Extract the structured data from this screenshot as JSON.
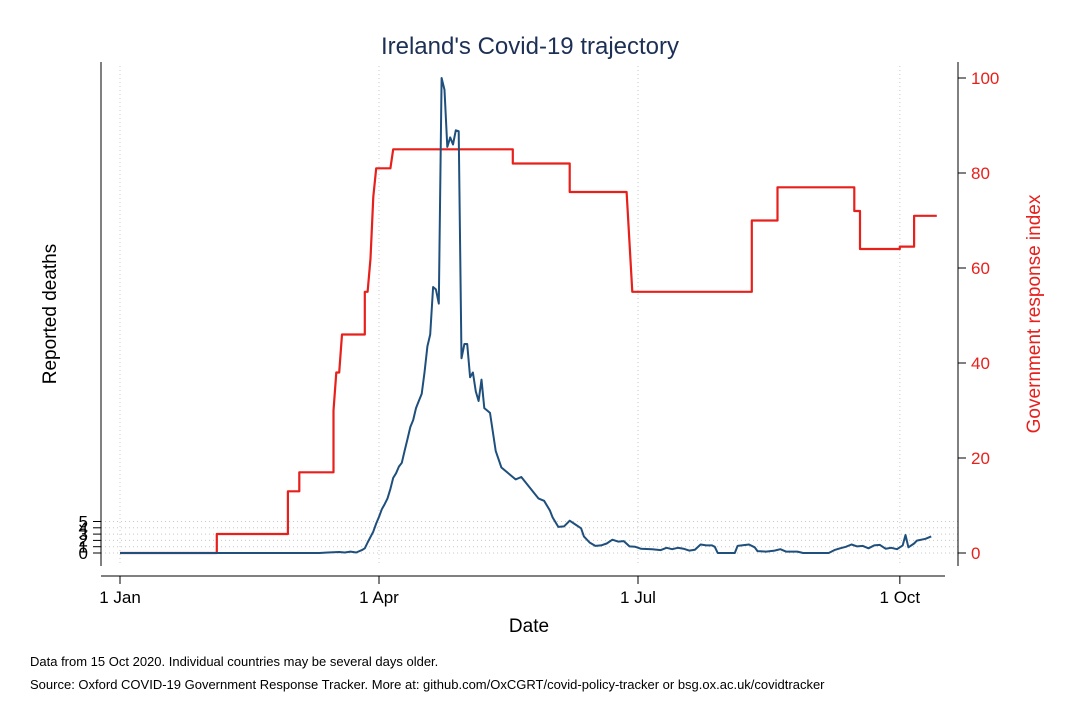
{
  "chart_data": {
    "type": "line",
    "title": "Ireland's Covid-19 trajectory",
    "xlabel": "Date",
    "ylabel_left": "Reported deaths",
    "ylabel_right": "Government response index",
    "x_ticks": [
      {
        "date": "2020-01-01",
        "label": "1 Jan"
      },
      {
        "date": "2020-04-01",
        "label": "1 Apr"
      },
      {
        "date": "2020-07-01",
        "label": "1 Jul"
      },
      {
        "date": "2020-10-01",
        "label": "1 Oct"
      }
    ],
    "xlim": [
      "2019-12-27",
      "2020-10-20"
    ],
    "y_left_ticks": [
      "0",
      "1",
      "2",
      "3",
      "4",
      "5"
    ],
    "y_left_ticks_overlapping": true,
    "y_right_ticks": [
      0,
      20,
      40,
      60,
      80,
      100
    ],
    "ylim_right": [
      -5,
      103
    ],
    "grid": "dotted, vertical at x ticks and horizontal at left ticks",
    "colors": {
      "deaths": "#1f4f7c",
      "response": "#e8201c",
      "title": "#1c2f54"
    },
    "series": [
      {
        "axis": "right",
        "color": "#e8201c",
        "points": [
          [
            "2020-01-01",
            0
          ],
          [
            "2020-02-04",
            0
          ],
          [
            "2020-02-04",
            4
          ],
          [
            "2020-02-29",
            4
          ],
          [
            "2020-02-29",
            13
          ],
          [
            "2020-03-04",
            13
          ],
          [
            "2020-03-04",
            17
          ],
          [
            "2020-03-16",
            17
          ],
          [
            "2020-03-16",
            30
          ],
          [
            "2020-03-17",
            38
          ],
          [
            "2020-03-18",
            38
          ],
          [
            "2020-03-19",
            46
          ],
          [
            "2020-03-27",
            46
          ],
          [
            "2020-03-27",
            55
          ],
          [
            "2020-03-28",
            55
          ],
          [
            "2020-03-29",
            62
          ],
          [
            "2020-03-30",
            75
          ],
          [
            "2020-03-31",
            81
          ],
          [
            "2020-04-05",
            81
          ],
          [
            "2020-04-06",
            85
          ],
          [
            "2020-05-18",
            85
          ],
          [
            "2020-05-18",
            82
          ],
          [
            "2020-06-07",
            82
          ],
          [
            "2020-06-07",
            76
          ],
          [
            "2020-06-27",
            76
          ],
          [
            "2020-06-29",
            55
          ],
          [
            "2020-08-10",
            55
          ],
          [
            "2020-08-10",
            70
          ],
          [
            "2020-08-19",
            70
          ],
          [
            "2020-08-19",
            77
          ],
          [
            "2020-09-15",
            77
          ],
          [
            "2020-09-15",
            72
          ],
          [
            "2020-09-17",
            72
          ],
          [
            "2020-09-17",
            64
          ],
          [
            "2020-10-01",
            64
          ],
          [
            "2020-10-01",
            64.5
          ],
          [
            "2020-10-06",
            64.5
          ],
          [
            "2020-10-06",
            71
          ],
          [
            "2020-10-14",
            71
          ]
        ]
      },
      {
        "axis": "deaths",
        "color": "#1f4f7c",
        "points": [
          [
            "2020-01-01",
            0
          ],
          [
            "2020-03-11",
            0
          ],
          [
            "2020-03-14",
            0.1
          ],
          [
            "2020-03-18",
            0.2
          ],
          [
            "2020-03-20",
            0.1
          ],
          [
            "2020-03-22",
            0.3
          ],
          [
            "2020-03-24",
            0.1
          ],
          [
            "2020-03-26",
            0.6
          ],
          [
            "2020-03-27",
            1.0
          ],
          [
            "2020-03-28",
            2.2
          ],
          [
            "2020-03-29",
            3.4
          ],
          [
            "2020-03-30",
            4.5
          ],
          [
            "2020-03-31",
            6.2
          ],
          [
            "2020-04-01",
            7.6
          ],
          [
            "2020-04-02",
            9.2
          ],
          [
            "2020-04-03",
            10.3
          ],
          [
            "2020-04-04",
            11.5
          ],
          [
            "2020-04-05",
            13.5
          ],
          [
            "2020-04-06",
            15.8
          ],
          [
            "2020-04-07",
            16.8
          ],
          [
            "2020-04-08",
            18.2
          ],
          [
            "2020-04-09",
            19.0
          ],
          [
            "2020-04-10",
            21.5
          ],
          [
            "2020-04-11",
            24.0
          ],
          [
            "2020-04-12",
            26.5
          ],
          [
            "2020-04-13",
            28.0
          ],
          [
            "2020-04-14",
            30.5
          ],
          [
            "2020-04-15",
            32.0
          ],
          [
            "2020-04-16",
            33.5
          ],
          [
            "2020-04-17",
            38.0
          ],
          [
            "2020-04-18",
            43.5
          ],
          [
            "2020-04-19",
            46.0
          ],
          [
            "2020-04-20",
            56.0
          ],
          [
            "2020-04-21",
            55.5
          ],
          [
            "2020-04-22",
            52.5
          ],
          [
            "2020-04-23",
            100
          ],
          [
            "2020-04-24",
            97.5
          ],
          [
            "2020-04-25",
            85.5
          ],
          [
            "2020-04-26",
            87.5
          ],
          [
            "2020-04-27",
            86.0
          ],
          [
            "2020-04-28",
            89.0
          ],
          [
            "2020-04-29",
            88.8
          ],
          [
            "2020-04-30",
            41.0
          ],
          [
            "2020-05-01",
            44.0
          ],
          [
            "2020-05-02",
            44.0
          ],
          [
            "2020-05-03",
            37.0
          ],
          [
            "2020-05-04",
            38.0
          ],
          [
            "2020-05-05",
            34.0
          ],
          [
            "2020-05-06",
            32.0
          ],
          [
            "2020-05-07",
            36.5
          ],
          [
            "2020-05-08",
            30.5
          ],
          [
            "2020-05-09",
            30.0
          ],
          [
            "2020-05-10",
            29.5
          ],
          [
            "2020-05-12",
            21.5
          ],
          [
            "2020-05-14",
            18.0
          ],
          [
            "2020-05-17",
            16.5
          ],
          [
            "2020-05-19",
            15.5
          ],
          [
            "2020-05-21",
            16.0
          ],
          [
            "2020-05-23",
            14.5
          ],
          [
            "2020-05-25",
            13.0
          ],
          [
            "2020-05-27",
            11.5
          ],
          [
            "2020-05-29",
            11.0
          ],
          [
            "2020-05-31",
            9.0
          ],
          [
            "2020-06-01",
            7.5
          ],
          [
            "2020-06-03",
            5.5
          ],
          [
            "2020-06-05",
            5.6
          ],
          [
            "2020-06-07",
            6.8
          ],
          [
            "2020-06-09",
            6.0
          ],
          [
            "2020-06-11",
            5.2
          ],
          [
            "2020-06-12",
            3.5
          ],
          [
            "2020-06-14",
            2.2
          ],
          [
            "2020-06-16",
            1.5
          ],
          [
            "2020-06-18",
            1.6
          ],
          [
            "2020-06-20",
            2.0
          ],
          [
            "2020-06-22",
            2.8
          ],
          [
            "2020-06-24",
            2.4
          ],
          [
            "2020-06-26",
            2.5
          ],
          [
            "2020-06-28",
            1.4
          ],
          [
            "2020-06-30",
            1.3
          ],
          [
            "2020-07-02",
            0.9
          ],
          [
            "2020-07-06",
            0.8
          ],
          [
            "2020-07-09",
            0.6
          ],
          [
            "2020-07-11",
            1.1
          ],
          [
            "2020-07-13",
            0.8
          ],
          [
            "2020-07-15",
            1.1
          ],
          [
            "2020-07-17",
            0.9
          ],
          [
            "2020-07-19",
            0.5
          ],
          [
            "2020-07-21",
            0.7
          ],
          [
            "2020-07-23",
            1.8
          ],
          [
            "2020-07-25",
            1.6
          ],
          [
            "2020-07-27",
            1.6
          ],
          [
            "2020-07-28",
            1.3
          ],
          [
            "2020-07-29",
            0
          ],
          [
            "2020-08-04",
            0
          ],
          [
            "2020-08-05",
            1.5
          ],
          [
            "2020-08-09",
            1.8
          ],
          [
            "2020-08-11",
            1.2
          ],
          [
            "2020-08-12",
            0.4
          ],
          [
            "2020-08-15",
            0.3
          ],
          [
            "2020-08-18",
            0.5
          ],
          [
            "2020-08-20",
            0.8
          ],
          [
            "2020-08-22",
            0.3
          ],
          [
            "2020-08-26",
            0.3
          ],
          [
            "2020-08-28",
            0
          ],
          [
            "2020-09-06",
            0
          ],
          [
            "2020-09-08",
            0.6
          ],
          [
            "2020-09-10",
            1.0
          ],
          [
            "2020-09-12",
            1.3
          ],
          [
            "2020-09-14",
            1.8
          ],
          [
            "2020-09-16",
            1.4
          ],
          [
            "2020-09-18",
            1.5
          ],
          [
            "2020-09-20",
            1.0
          ],
          [
            "2020-09-22",
            1.6
          ],
          [
            "2020-09-24",
            1.7
          ],
          [
            "2020-09-26",
            0.9
          ],
          [
            "2020-09-28",
            1.1
          ],
          [
            "2020-09-30",
            0.8
          ],
          [
            "2020-10-02",
            1.6
          ],
          [
            "2020-10-03",
            3.8
          ],
          [
            "2020-10-04",
            1.2
          ],
          [
            "2020-10-06",
            2.0
          ],
          [
            "2020-10-07",
            2.6
          ],
          [
            "2020-10-10",
            3.0
          ],
          [
            "2020-10-12",
            3.5
          ]
        ]
      }
    ]
  },
  "footnotes": {
    "line1": "Data from 15 Oct 2020. Individual countries may be several days older.",
    "line2": "Source: Oxford COVID-19 Government Response Tracker. More at: github.com/OxCGRT/covid-policy-tracker or bsg.ox.ac.uk/covidtracker"
  }
}
